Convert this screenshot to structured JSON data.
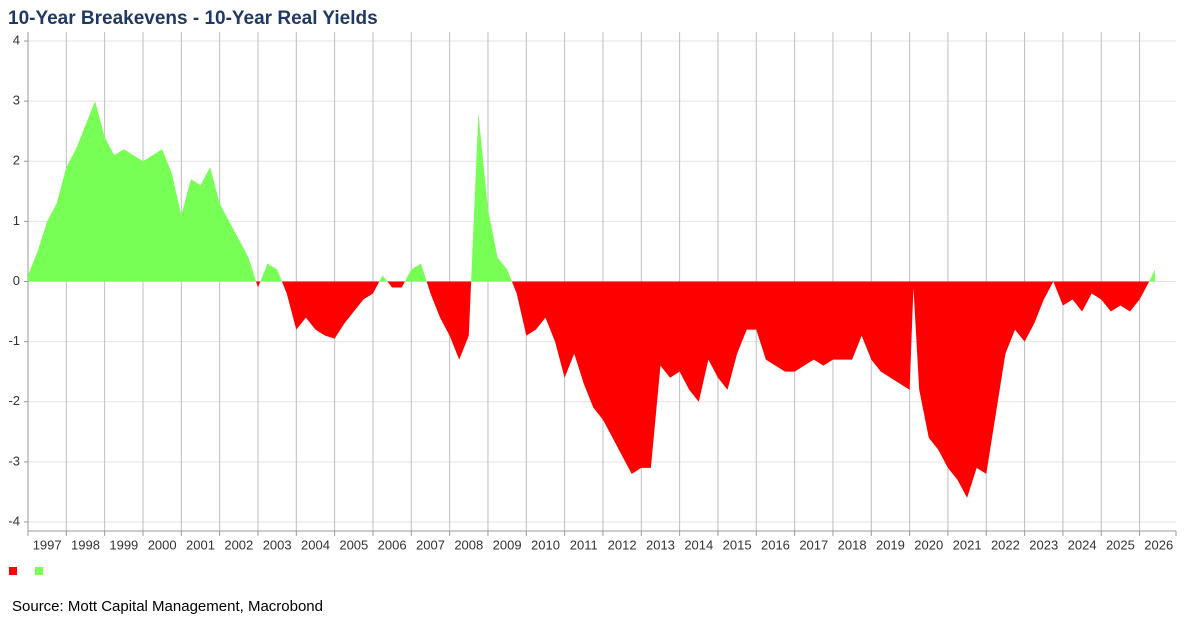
{
  "chart_data": {
    "type": "area",
    "title": "10-Year Breakevens - 10-Year Real Yields",
    "source": "Source: Mott Capital Management, Macrobond",
    "positive_color": "#77ff55",
    "negative_color": "#ff0000",
    "x": [
      1997.0,
      1997.25,
      1997.5,
      1997.75,
      1998.0,
      1998.25,
      1998.5,
      1998.75,
      1999.0,
      1999.25,
      1999.5,
      1999.75,
      2000.0,
      2000.25,
      2000.5,
      2000.75,
      2001.0,
      2001.25,
      2001.5,
      2001.75,
      2002.0,
      2002.25,
      2002.5,
      2002.75,
      2003.0,
      2003.25,
      2003.5,
      2003.75,
      2004.0,
      2004.25,
      2004.5,
      2004.75,
      2005.0,
      2005.25,
      2005.5,
      2005.75,
      2006.0,
      2006.25,
      2006.5,
      2006.75,
      2007.0,
      2007.25,
      2007.5,
      2007.75,
      2008.0,
      2008.25,
      2008.5,
      2008.75,
      2009.0,
      2009.25,
      2009.5,
      2009.75,
      2010.0,
      2010.25,
      2010.5,
      2010.75,
      2011.0,
      2011.25,
      2011.5,
      2011.75,
      2012.0,
      2012.25,
      2012.5,
      2012.75,
      2013.0,
      2013.25,
      2013.5,
      2013.75,
      2014.0,
      2014.25,
      2014.5,
      2014.75,
      2015.0,
      2015.25,
      2015.5,
      2015.75,
      2016.0,
      2016.25,
      2016.5,
      2016.75,
      2017.0,
      2017.25,
      2017.5,
      2017.75,
      2018.0,
      2018.25,
      2018.5,
      2018.75,
      2019.0,
      2019.25,
      2019.5,
      2019.75,
      2020.0,
      2020.1,
      2020.25,
      2020.5,
      2020.75,
      2021.0,
      2021.25,
      2021.5,
      2021.75,
      2022.0,
      2022.25,
      2022.5,
      2022.75,
      2023.0,
      2023.25,
      2023.5,
      2023.75,
      2024.0,
      2024.25,
      2024.5,
      2024.75,
      2025.0,
      2025.25,
      2025.5,
      2025.75,
      2026.0,
      2026.25,
      2026.4
    ],
    "values": [
      0.1,
      0.5,
      1.0,
      1.3,
      1.9,
      2.2,
      2.6,
      3.0,
      2.4,
      2.1,
      2.2,
      2.1,
      2.0,
      2.1,
      2.2,
      1.8,
      1.1,
      1.7,
      1.6,
      1.9,
      1.3,
      1.0,
      0.7,
      0.4,
      -0.1,
      0.3,
      0.2,
      -0.2,
      -0.8,
      -0.6,
      -0.8,
      -0.9,
      -0.95,
      -0.7,
      -0.5,
      -0.3,
      -0.2,
      0.1,
      -0.1,
      -0.1,
      0.2,
      0.3,
      -0.2,
      -0.6,
      -0.9,
      -1.3,
      -0.9,
      2.8,
      1.2,
      0.4,
      0.2,
      -0.2,
      -0.9,
      -0.8,
      -0.6,
      -1.0,
      -1.6,
      -1.2,
      -1.7,
      -2.1,
      -2.3,
      -2.6,
      -2.9,
      -3.2,
      -3.1,
      -3.1,
      -1.4,
      -1.6,
      -1.5,
      -1.8,
      -2.0,
      -1.3,
      -1.6,
      -1.8,
      -1.2,
      -0.8,
      -0.8,
      -1.3,
      -1.4,
      -1.5,
      -1.5,
      -1.4,
      -1.3,
      -1.4,
      -1.3,
      -1.3,
      -1.3,
      -0.9,
      -1.3,
      -1.5,
      -1.6,
      -1.7,
      -1.8,
      -0.1,
      -1.8,
      -2.6,
      -2.8,
      -3.1,
      -3.3,
      -3.6,
      -3.1,
      -3.2,
      -2.2,
      -1.2,
      -0.8,
      -1.0,
      -0.7,
      -0.3,
      0.0,
      -0.4,
      -0.3,
      -0.5,
      -0.2,
      -0.3,
      -0.5,
      -0.4,
      -0.5,
      -0.3,
      0.0,
      0.2
    ],
    "xlim": [
      1997,
      2026.95
    ],
    "xticks": [
      1997,
      1998,
      1999,
      2000,
      2001,
      2002,
      2003,
      2004,
      2005,
      2006,
      2007,
      2008,
      2009,
      2010,
      2011,
      2012,
      2013,
      2014,
      2015,
      2016,
      2017,
      2018,
      2019,
      2020,
      2021,
      2022,
      2023,
      2024,
      2025,
      2026
    ],
    "ylim": [
      -4.15,
      4.15
    ],
    "yticks": [
      -4,
      -3,
      -2,
      -1,
      0,
      1,
      2,
      3,
      4
    ],
    "grid": true
  }
}
